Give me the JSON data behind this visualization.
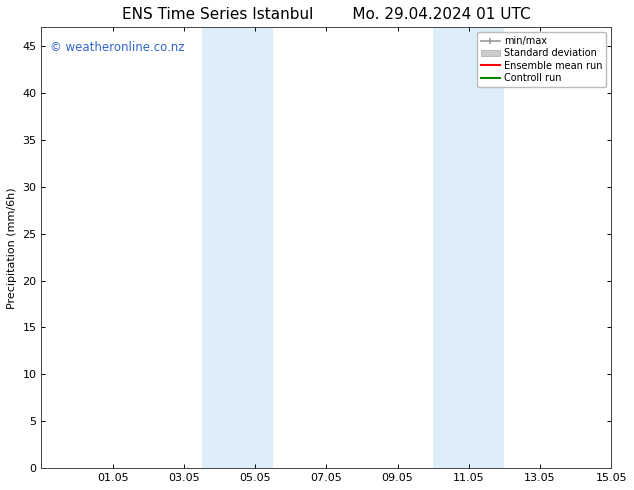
{
  "title_left": "ENS Time Series Istanbul",
  "title_right": "Mo. 29.04.2024 01 UTC",
  "ylabel": "Precipitation (mm/6h)",
  "ylim": [
    0,
    47
  ],
  "yticks": [
    0,
    5,
    10,
    15,
    20,
    25,
    30,
    35,
    40,
    45
  ],
  "xtick_labels": [
    "01.05",
    "03.05",
    "05.05",
    "07.05",
    "09.05",
    "11.05",
    "13.05",
    "15.05"
  ],
  "xlim_start": 0,
  "xlim_end": 16,
  "xtick_positions": [
    2,
    4,
    6,
    8,
    10,
    12,
    14,
    16
  ],
  "background_color": "#ffffff",
  "plot_bg_color": "#ffffff",
  "shaded_color": "#ddeef8",
  "shaded_regions": [
    {
      "x_start": 4.5,
      "x_end": 6.5
    },
    {
      "x_start": 11.0,
      "x_end": 13.0
    }
  ],
  "watermark_text": "© weatheronline.co.nz",
  "watermark_color": "#3366cc",
  "watermark_fontsize": 8.5,
  "title_fontsize": 11,
  "axis_label_fontsize": 8,
  "tick_fontsize": 8,
  "legend_labels": [
    "min/max",
    "Standard deviation",
    "Ensemble mean run",
    "Controll run"
  ],
  "legend_colors": [
    "#999999",
    "#cccccc",
    "#ff0000",
    "#008800"
  ]
}
